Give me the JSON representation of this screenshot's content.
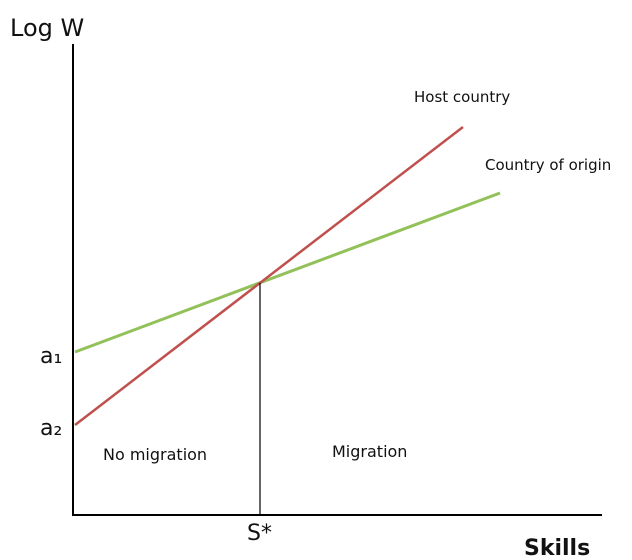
{
  "axes": {
    "y_label": "Log W",
    "x_label": "Skills"
  },
  "lines": [
    {
      "label": "Host country",
      "intercept_label": "a₂"
    },
    {
      "label": "Country of origin",
      "intercept_label": "a₁"
    }
  ],
  "threshold": {
    "label": "S*"
  },
  "regions": [
    {
      "label": "No migration"
    },
    {
      "label": "Migration"
    }
  ]
}
